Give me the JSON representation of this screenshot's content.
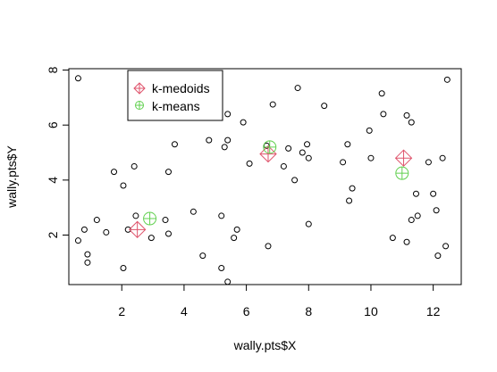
{
  "chart_data": {
    "type": "scatter",
    "title": "",
    "xlabel": "wally.pts$X",
    "ylabel": "wally.pts$Y",
    "xlim": [
      0.3,
      12.9
    ],
    "ylim": [
      0.2,
      8.05
    ],
    "xticks": [
      2,
      4,
      6,
      8,
      10,
      12
    ],
    "yticks": [
      2,
      4,
      6,
      8
    ],
    "xtick_labels": [
      "2",
      "4",
      "6",
      "8",
      "10",
      "12"
    ],
    "ytick_labels": [
      "2",
      "4",
      "6",
      "8"
    ],
    "grid": false,
    "legend_position": "top-left",
    "colors": {
      "points": "#000000",
      "kmedoids": "#df536b",
      "kmeans": "#61d04f"
    },
    "series": [
      {
        "name": "",
        "marker": "open-circle",
        "points": [
          [
            0.6,
            7.7
          ],
          [
            0.6,
            1.8
          ],
          [
            0.8,
            2.2
          ],
          [
            0.9,
            1.3
          ],
          [
            0.9,
            1.0
          ],
          [
            1.2,
            2.55
          ],
          [
            1.5,
            2.1
          ],
          [
            1.75,
            4.3
          ],
          [
            2.05,
            3.8
          ],
          [
            2.05,
            0.8
          ],
          [
            2.2,
            2.2
          ],
          [
            2.4,
            4.5
          ],
          [
            2.45,
            2.7
          ],
          [
            2.95,
            1.9
          ],
          [
            3.4,
            2.55
          ],
          [
            3.5,
            4.3
          ],
          [
            3.5,
            2.05
          ],
          [
            3.7,
            5.3
          ],
          [
            4.3,
            2.85
          ],
          [
            4.6,
            1.25
          ],
          [
            4.8,
            5.45
          ],
          [
            5.2,
            2.7
          ],
          [
            5.2,
            0.8
          ],
          [
            5.3,
            5.2
          ],
          [
            5.4,
            6.4
          ],
          [
            5.4,
            5.45
          ],
          [
            5.4,
            0.3
          ],
          [
            5.6,
            1.9
          ],
          [
            5.7,
            2.2
          ],
          [
            5.9,
            6.1
          ],
          [
            6.1,
            4.6
          ],
          [
            6.65,
            5.25
          ],
          [
            6.7,
            1.6
          ],
          [
            6.85,
            6.75
          ],
          [
            7.2,
            4.5
          ],
          [
            7.35,
            5.15
          ],
          [
            7.55,
            4.0
          ],
          [
            7.65,
            7.35
          ],
          [
            7.8,
            5.0
          ],
          [
            7.95,
            5.3
          ],
          [
            8.0,
            4.8
          ],
          [
            8.0,
            2.4
          ],
          [
            8.5,
            6.7
          ],
          [
            9.1,
            4.65
          ],
          [
            9.25,
            5.3
          ],
          [
            9.3,
            3.25
          ],
          [
            9.4,
            3.7
          ],
          [
            9.95,
            5.8
          ],
          [
            10.0,
            4.8
          ],
          [
            10.35,
            7.15
          ],
          [
            10.4,
            6.4
          ],
          [
            10.7,
            1.9
          ],
          [
            11.15,
            6.35
          ],
          [
            11.15,
            1.75
          ],
          [
            11.3,
            2.55
          ],
          [
            11.3,
            6.1
          ],
          [
            11.45,
            3.5
          ],
          [
            11.5,
            2.7
          ],
          [
            11.85,
            4.65
          ],
          [
            12.0,
            3.5
          ],
          [
            12.1,
            2.9
          ],
          [
            12.15,
            1.25
          ],
          [
            12.3,
            4.8
          ],
          [
            12.4,
            1.6
          ],
          [
            12.45,
            7.65
          ]
        ]
      },
      {
        "name": "k-medoids",
        "marker": "diamond-plus",
        "points": [
          [
            2.5,
            2.2
          ],
          [
            6.7,
            4.95
          ],
          [
            11.05,
            4.8
          ]
        ]
      },
      {
        "name": "k-means",
        "marker": "circle-plus",
        "points": [
          [
            2.9,
            2.6
          ],
          [
            6.75,
            5.2
          ],
          [
            11.0,
            4.25
          ]
        ]
      }
    ]
  }
}
